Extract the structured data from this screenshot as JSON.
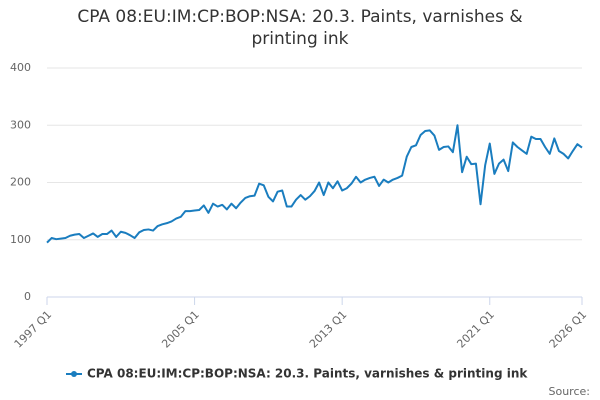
{
  "chart_data": {
    "type": "line",
    "title": "CPA 08:EU:IM:CP:BOP:NSA: 20.3. Paints, varnishes & printing ink",
    "source": "Source:",
    "categories": [
      "1997 Q1",
      null,
      null,
      null,
      null,
      null,
      null,
      null,
      null,
      null,
      null,
      null,
      null,
      null,
      null,
      null,
      null,
      null,
      null,
      null,
      null,
      null,
      null,
      null,
      null,
      null,
      null,
      null,
      null,
      null,
      null,
      null,
      "2005 Q1",
      null,
      null,
      null,
      null,
      null,
      null,
      null,
      null,
      null,
      null,
      null,
      null,
      null,
      null,
      null,
      null,
      null,
      null,
      null,
      null,
      null,
      null,
      null,
      null,
      null,
      null,
      null,
      null,
      null,
      null,
      null,
      "2013 Q1",
      null,
      null,
      null,
      null,
      null,
      null,
      null,
      null,
      null,
      null,
      null,
      null,
      null,
      null,
      null,
      null,
      null,
      null,
      null,
      null,
      null,
      null,
      null,
      null,
      null,
      null,
      null,
      null,
      null,
      null,
      null,
      "2021 Q1",
      null,
      null,
      null,
      null,
      null,
      null,
      null,
      null,
      null,
      null,
      null,
      null,
      null,
      null,
      null,
      null,
      null,
      null,
      null,
      "2026 Q1"
    ],
    "series": [
      {
        "name": "CPA 08:EU:IM:CP:BOP:NSA: 20.3. Paints, varnishes & printing ink",
        "color": "#1a7dbf",
        "values": [
          95,
          103,
          101,
          102,
          103,
          107,
          109,
          110,
          103,
          107,
          111,
          105,
          110,
          110,
          116,
          105,
          114,
          112,
          108,
          103,
          113,
          117,
          118,
          116,
          124,
          127,
          129,
          132,
          137,
          140,
          150,
          150,
          151,
          152,
          160,
          147,
          163,
          158,
          161,
          153,
          163,
          155,
          165,
          173,
          176,
          177,
          198,
          195,
          175,
          167,
          184,
          186,
          158,
          158,
          170,
          178,
          170,
          176,
          185,
          200,
          178,
          200,
          190,
          202,
          186,
          190,
          198,
          210,
          200,
          205,
          208,
          210,
          194,
          205,
          200,
          205,
          208,
          212,
          245,
          262,
          265,
          283,
          290,
          291,
          282,
          257,
          262,
          263,
          253,
          300,
          218,
          245,
          232,
          233,
          162,
          230,
          268,
          215,
          233,
          240,
          220,
          270,
          262,
          256,
          250,
          280,
          276,
          276,
          262,
          250,
          277,
          255,
          250,
          242,
          255,
          267,
          261
        ]
      }
    ],
    "ylim": [
      0,
      400
    ],
    "yticks": [
      0,
      100,
      200,
      300,
      400
    ],
    "grid": true
  }
}
